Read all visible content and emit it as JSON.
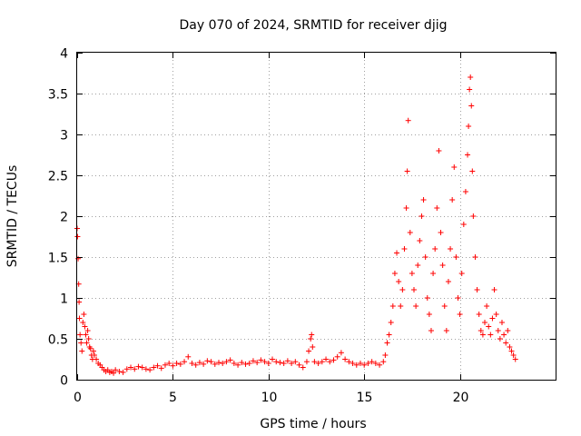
{
  "chart_data": {
    "type": "scatter",
    "title": "Day 070 of 2024, SRMTID for receiver djig",
    "xlabel": "GPS time / hours",
    "ylabel": "SRMTID / TECUs",
    "xlim": [
      0,
      25
    ],
    "ylim": [
      0,
      4
    ],
    "xticks": [
      0,
      5,
      10,
      15,
      20
    ],
    "yticks": [
      0,
      0.5,
      1,
      1.5,
      2,
      2.5,
      3,
      3.5,
      4
    ],
    "xtick_labels": [
      "0",
      "5",
      "10",
      "15",
      "20"
    ],
    "ytick_labels": [
      "0",
      "0.5",
      "1",
      "1.5",
      "2",
      "2.5",
      "3",
      "3.5",
      "4"
    ],
    "grid": true,
    "marker": "+",
    "series": [
      {
        "name": "SRMTID",
        "color": "#ff0000",
        "points": [
          [
            0.0,
            1.85
          ],
          [
            0.02,
            1.75
          ],
          [
            0.05,
            1.48
          ],
          [
            0.08,
            1.17
          ],
          [
            0.1,
            0.95
          ],
          [
            0.12,
            0.75
          ],
          [
            0.15,
            0.55
          ],
          [
            0.2,
            0.45
          ],
          [
            0.25,
            0.35
          ],
          [
            0.3,
            0.7
          ],
          [
            0.35,
            0.8
          ],
          [
            0.4,
            0.65
          ],
          [
            0.45,
            0.55
          ],
          [
            0.5,
            0.45
          ],
          [
            0.55,
            0.6
          ],
          [
            0.6,
            0.5
          ],
          [
            0.65,
            0.4
          ],
          [
            0.7,
            0.38
          ],
          [
            0.75,
            0.3
          ],
          [
            0.8,
            0.25
          ],
          [
            0.85,
            0.35
          ],
          [
            0.9,
            0.3
          ],
          [
            1.0,
            0.25
          ],
          [
            1.1,
            0.2
          ],
          [
            1.2,
            0.18
          ],
          [
            1.3,
            0.15
          ],
          [
            1.4,
            0.12
          ],
          [
            1.5,
            0.1
          ],
          [
            1.6,
            0.12
          ],
          [
            1.7,
            0.09
          ],
          [
            1.8,
            0.1
          ],
          [
            1.9,
            0.08
          ],
          [
            2.0,
            0.12
          ],
          [
            2.2,
            0.1
          ],
          [
            2.4,
            0.09
          ],
          [
            2.6,
            0.13
          ],
          [
            2.8,
            0.15
          ],
          [
            3.0,
            0.13
          ],
          [
            3.2,
            0.16
          ],
          [
            3.4,
            0.15
          ],
          [
            3.6,
            0.13
          ],
          [
            3.8,
            0.12
          ],
          [
            4.0,
            0.15
          ],
          [
            4.2,
            0.17
          ],
          [
            4.4,
            0.14
          ],
          [
            4.6,
            0.18
          ],
          [
            4.8,
            0.2
          ],
          [
            5.0,
            0.17
          ],
          [
            5.2,
            0.2
          ],
          [
            5.4,
            0.19
          ],
          [
            5.6,
            0.22
          ],
          [
            5.8,
            0.28
          ],
          [
            6.0,
            0.2
          ],
          [
            6.2,
            0.18
          ],
          [
            6.4,
            0.21
          ],
          [
            6.6,
            0.19
          ],
          [
            6.8,
            0.23
          ],
          [
            7.0,
            0.22
          ],
          [
            7.2,
            0.19
          ],
          [
            7.4,
            0.21
          ],
          [
            7.6,
            0.2
          ],
          [
            7.8,
            0.22
          ],
          [
            8.0,
            0.24
          ],
          [
            8.2,
            0.2
          ],
          [
            8.4,
            0.18
          ],
          [
            8.6,
            0.21
          ],
          [
            8.8,
            0.19
          ],
          [
            9.0,
            0.2
          ],
          [
            9.2,
            0.23
          ],
          [
            9.4,
            0.21
          ],
          [
            9.6,
            0.24
          ],
          [
            9.8,
            0.22
          ],
          [
            10.0,
            0.2
          ],
          [
            10.2,
            0.25
          ],
          [
            10.4,
            0.22
          ],
          [
            10.6,
            0.21
          ],
          [
            10.8,
            0.2
          ],
          [
            11.0,
            0.23
          ],
          [
            11.2,
            0.2
          ],
          [
            11.4,
            0.22
          ],
          [
            11.6,
            0.18
          ],
          [
            11.8,
            0.15
          ],
          [
            12.0,
            0.22
          ],
          [
            12.1,
            0.35
          ],
          [
            12.2,
            0.5
          ],
          [
            12.25,
            0.55
          ],
          [
            12.3,
            0.4
          ],
          [
            12.4,
            0.22
          ],
          [
            12.6,
            0.2
          ],
          [
            12.8,
            0.22
          ],
          [
            13.0,
            0.25
          ],
          [
            13.2,
            0.22
          ],
          [
            13.4,
            0.24
          ],
          [
            13.6,
            0.28
          ],
          [
            13.8,
            0.33
          ],
          [
            14.0,
            0.25
          ],
          [
            14.2,
            0.22
          ],
          [
            14.4,
            0.2
          ],
          [
            14.6,
            0.18
          ],
          [
            14.8,
            0.2
          ],
          [
            15.0,
            0.18
          ],
          [
            15.2,
            0.2
          ],
          [
            15.4,
            0.22
          ],
          [
            15.6,
            0.2
          ],
          [
            15.8,
            0.18
          ],
          [
            16.0,
            0.22
          ],
          [
            16.1,
            0.3
          ],
          [
            16.2,
            0.45
          ],
          [
            16.3,
            0.55
          ],
          [
            16.4,
            0.7
          ],
          [
            16.5,
            0.9
          ],
          [
            16.6,
            1.3
          ],
          [
            16.7,
            1.55
          ],
          [
            16.8,
            1.2
          ],
          [
            16.9,
            0.9
          ],
          [
            17.0,
            1.1
          ],
          [
            17.1,
            1.6
          ],
          [
            17.2,
            2.1
          ],
          [
            17.25,
            2.55
          ],
          [
            17.3,
            3.17
          ],
          [
            17.4,
            1.8
          ],
          [
            17.5,
            1.3
          ],
          [
            17.6,
            1.1
          ],
          [
            17.7,
            0.9
          ],
          [
            17.8,
            1.4
          ],
          [
            17.9,
            1.7
          ],
          [
            18.0,
            2.0
          ],
          [
            18.1,
            2.2
          ],
          [
            18.2,
            1.5
          ],
          [
            18.3,
            1.0
          ],
          [
            18.4,
            0.8
          ],
          [
            18.5,
            0.6
          ],
          [
            18.6,
            1.3
          ],
          [
            18.7,
            1.6
          ],
          [
            18.8,
            2.1
          ],
          [
            18.9,
            2.8
          ],
          [
            19.0,
            1.8
          ],
          [
            19.1,
            1.4
          ],
          [
            19.2,
            0.9
          ],
          [
            19.3,
            0.6
          ],
          [
            19.4,
            1.2
          ],
          [
            19.5,
            1.6
          ],
          [
            19.6,
            2.2
          ],
          [
            19.7,
            2.6
          ],
          [
            19.8,
            1.5
          ],
          [
            19.9,
            1.0
          ],
          [
            20.0,
            0.8
          ],
          [
            20.1,
            1.3
          ],
          [
            20.2,
            1.9
          ],
          [
            20.3,
            2.3
          ],
          [
            20.4,
            2.75
          ],
          [
            20.45,
            3.1
          ],
          [
            20.5,
            3.55
          ],
          [
            20.55,
            3.7
          ],
          [
            20.6,
            3.35
          ],
          [
            20.65,
            2.55
          ],
          [
            20.7,
            2.0
          ],
          [
            20.8,
            1.5
          ],
          [
            20.9,
            1.1
          ],
          [
            21.0,
            0.8
          ],
          [
            21.1,
            0.6
          ],
          [
            21.2,
            0.55
          ],
          [
            21.3,
            0.7
          ],
          [
            21.4,
            0.9
          ],
          [
            21.5,
            0.65
          ],
          [
            21.6,
            0.55
          ],
          [
            21.7,
            0.75
          ],
          [
            21.8,
            1.1
          ],
          [
            21.9,
            0.8
          ],
          [
            22.0,
            0.6
          ],
          [
            22.1,
            0.5
          ],
          [
            22.2,
            0.7
          ],
          [
            22.3,
            0.55
          ],
          [
            22.4,
            0.45
          ],
          [
            22.5,
            0.6
          ],
          [
            22.6,
            0.4
          ],
          [
            22.7,
            0.35
          ],
          [
            22.8,
            0.3
          ],
          [
            22.9,
            0.25
          ]
        ]
      }
    ]
  }
}
